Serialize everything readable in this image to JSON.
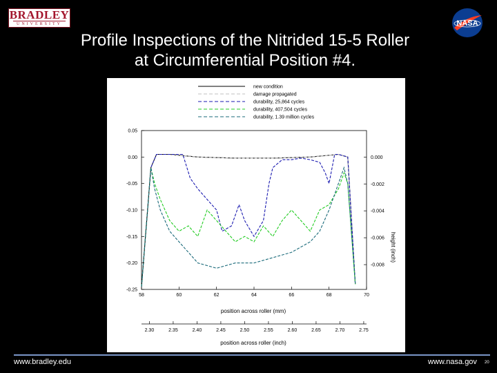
{
  "slide": {
    "title_line1": "Profile Inspections of the Nitrided 15-5 Roller",
    "title_line2": "at Circumferential Position #4.",
    "footer_left": "www.bradley.edu",
    "footer_right": "www.nasa.gov",
    "page_number": "20",
    "bradley_logo_top": "BRADLEY",
    "bradley_logo_bottom": "UNIVERSITY",
    "nasa_logo_text": "NASA",
    "colors": {
      "background": "#000000",
      "footer_rule": "#7a96c8",
      "bradley_red": "#a3162d",
      "nasa_blue": "#0b3d91",
      "nasa_red": "#fc3d21"
    }
  },
  "chart_data": {
    "type": "line",
    "title": "",
    "xlabel": "position across roller (mm)",
    "ylabel": "",
    "ylabel_right": "height (inch)",
    "xlim": [
      58,
      70
    ],
    "ylim": [
      -0.25,
      0.05
    ],
    "x_ticks": [
      "58",
      "60",
      "62",
      "64",
      "66",
      "68",
      "70"
    ],
    "y_ticks": [
      "0.05",
      "0.00",
      "-0.05",
      "-0.10",
      "-0.15",
      "-0.20",
      "-0.25"
    ],
    "right_ticks": [
      "0.000",
      "-0.002",
      "-0.004",
      "-0.006",
      "-0.008"
    ],
    "secondary_xlabel": "position across roller (inch)",
    "secondary_x_ticks": [
      "2.30",
      "2.35",
      "2.40",
      "2.45",
      "2.50",
      "2.55",
      "2.60",
      "2.65",
      "2.70",
      "2.75"
    ],
    "legend_position": "top",
    "series": [
      {
        "name": "new condition",
        "color": "#000000",
        "dash": "solid",
        "x": [
          58.0,
          58.5,
          58.8,
          59.5,
          61.0,
          63.0,
          65.0,
          67.0,
          68.5,
          69.0,
          69.4
        ],
        "y": [
          -0.245,
          -0.02,
          0.005,
          0.005,
          0.0,
          -0.002,
          -0.002,
          0.0,
          0.005,
          0.0,
          -0.24
        ]
      },
      {
        "name": "damage propagated",
        "color": "#c0c0c0",
        "dash": "dash",
        "x": [
          58.0,
          58.5,
          58.8,
          59.5,
          61.0,
          63.0,
          65.0,
          67.0,
          68.5,
          69.0,
          69.4
        ],
        "y": [
          -0.245,
          -0.02,
          0.005,
          0.005,
          0.0,
          -0.002,
          -0.002,
          0.0,
          0.005,
          0.0,
          -0.24
        ]
      },
      {
        "name": "durability, 25,864 cycles",
        "color": "#1a1ab0",
        "dash": "dash",
        "x": [
          58.0,
          58.5,
          58.8,
          60.2,
          60.6,
          61.0,
          61.5,
          62.0,
          62.3,
          62.8,
          63.2,
          63.5,
          64.0,
          64.5,
          64.8,
          65.0,
          65.5,
          66.0,
          66.5,
          67.0,
          67.5,
          67.8,
          68.0,
          68.3,
          68.5,
          69.0,
          69.4
        ],
        "y": [
          -0.245,
          -0.02,
          0.005,
          0.005,
          -0.04,
          -0.06,
          -0.08,
          -0.1,
          -0.14,
          -0.13,
          -0.09,
          -0.12,
          -0.15,
          -0.12,
          -0.05,
          -0.02,
          -0.005,
          -0.005,
          -0.002,
          -0.005,
          -0.01,
          -0.03,
          -0.05,
          0.005,
          0.005,
          0.0,
          -0.24
        ]
      },
      {
        "name": "durability, 407,504 cycles",
        "color": "#22cc22",
        "dash": "dash",
        "x": [
          58.0,
          58.5,
          58.7,
          59.0,
          59.5,
          60.0,
          60.5,
          61.0,
          61.5,
          62.0,
          62.5,
          63.0,
          63.5,
          64.0,
          64.5,
          65.0,
          65.5,
          66.0,
          66.5,
          67.0,
          67.5,
          68.0,
          68.5,
          68.8,
          69.0,
          69.4
        ],
        "y": [
          -0.245,
          -0.02,
          -0.05,
          -0.08,
          -0.12,
          -0.14,
          -0.13,
          -0.15,
          -0.1,
          -0.12,
          -0.14,
          -0.16,
          -0.15,
          -0.16,
          -0.13,
          -0.15,
          -0.12,
          -0.1,
          -0.12,
          -0.14,
          -0.1,
          -0.09,
          -0.06,
          -0.03,
          -0.05,
          -0.24
        ]
      },
      {
        "name": "durability, 1.39 million cycles",
        "color": "#1a6a7a",
        "dash": "dash",
        "x": [
          58.0,
          58.5,
          58.7,
          59.0,
          59.5,
          60.0,
          60.5,
          61.0,
          62.0,
          63.0,
          64.0,
          65.0,
          66.0,
          67.0,
          67.5,
          68.0,
          68.5,
          68.8,
          69.0,
          69.4
        ],
        "y": [
          -0.245,
          -0.02,
          -0.06,
          -0.1,
          -0.14,
          -0.16,
          -0.18,
          -0.2,
          -0.21,
          -0.2,
          -0.2,
          -0.19,
          -0.18,
          -0.16,
          -0.14,
          -0.1,
          -0.05,
          -0.02,
          -0.05,
          -0.24
        ]
      }
    ]
  }
}
